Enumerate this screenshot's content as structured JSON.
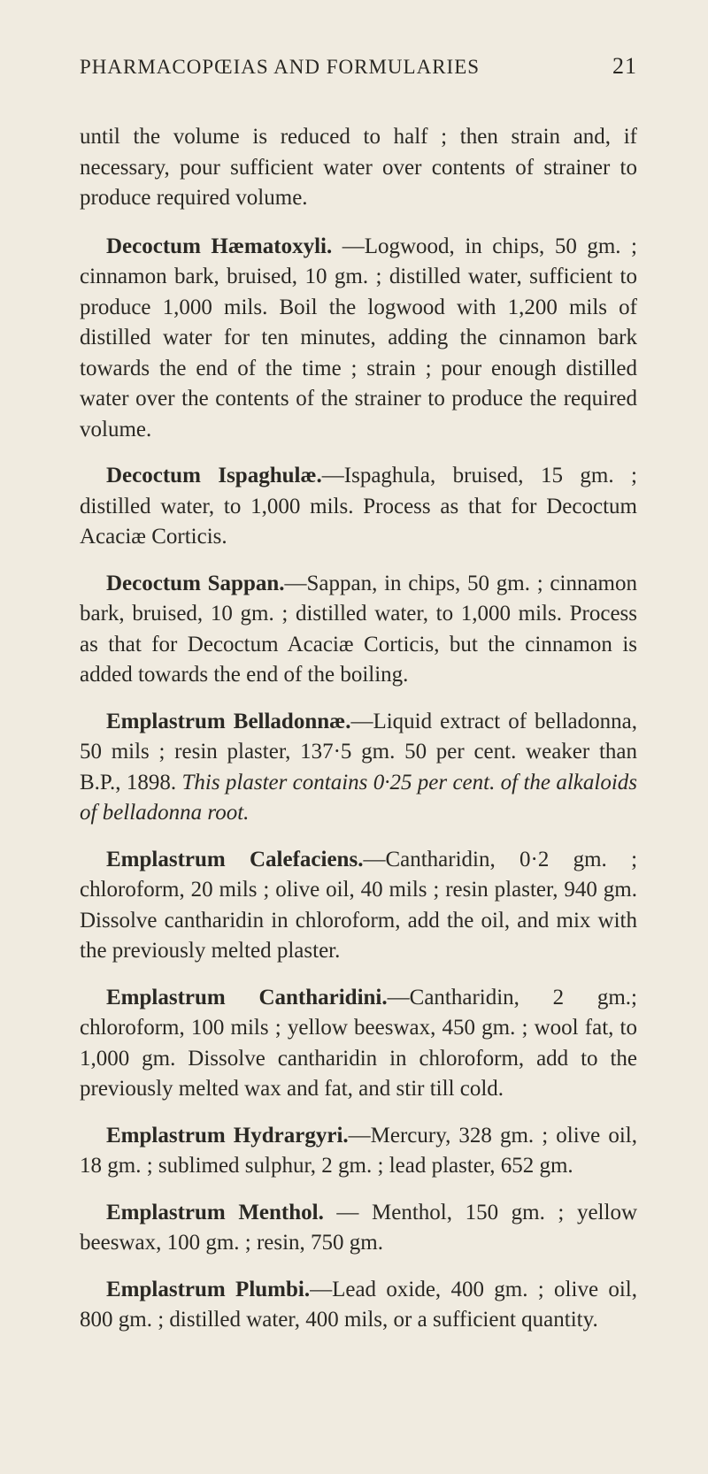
{
  "page": {
    "running_title": "PHARMACOPŒIAS AND FORMULARIES",
    "page_number": "21",
    "background_color": "#f0ebe0",
    "text_color": "#2a2823",
    "font_family": "Georgia, Times New Roman, serif",
    "body_fontsize": 25,
    "header_fontsize": 23,
    "line_height": 1.38
  },
  "intro": {
    "text": "until the volume is reduced to half ; then strain and, if necessary, pour sufficient water over contents of strainer to produce required volume."
  },
  "entries": [
    {
      "title": "Decoctum Hæmatoxyli.",
      "body": " —Logwood, in chips, 50 gm. ; cinnamon bark, bruised, 10 gm. ; distilled water, sufficient to produce 1,000 mils. Boil the logwood with 1,200 mils of distilled water for ten minutes, adding the cinnamon bark towards the end of the time ; strain ; pour enough distilled water over the contents of the strainer to produce the required volume."
    },
    {
      "title": "Decoctum Ispaghulæ.",
      "body": "—Ispaghula, bruised, 15 gm. ; distilled water, to 1,000 mils. Process as that for Decoctum Acaciæ Corticis."
    },
    {
      "title": "Decoctum Sappan.",
      "body": "—Sappan, in chips, 50 gm. ; cinnamon bark, bruised, 10 gm. ; distilled water, to 1,000 mils. Process as that for Decoctum Acaciæ Corticis, but the cinnamon is added towards the end of the boiling."
    },
    {
      "title": "Emplastrum Belladonnæ.",
      "body": "—Liquid extract of belladonna, 50 mils ; resin plaster, 137·5 gm. 50 per cent. weaker than B.P., 1898. ",
      "italic_tail": "This plaster contains 0·25 per cent. of the alkaloids of belladonna root."
    },
    {
      "title": "Emplastrum Calefaciens.",
      "body": "—Cantharidin, 0·2 gm. ; chloroform, 20 mils ; olive oil, 40 mils ; resin plaster, 940 gm. Dissolve cantharidin in chloroform, add the oil, and mix with the previously melted plaster."
    },
    {
      "title": "Emplastrum Cantharidini.",
      "body": "—Cantharidin, 2 gm.; chloroform, 100 mils ; yellow beeswax, 450 gm. ; wool fat, to 1,000 gm. Dissolve cantharidin in chloroform, add to the previously melted wax and fat, and stir till cold."
    },
    {
      "title": "Emplastrum Hydrargyri.",
      "body": "—Mercury, 328 gm. ; olive oil, 18 gm. ; sublimed sulphur, 2 gm. ; lead plaster, 652 gm."
    },
    {
      "title": "Emplastrum Menthol.",
      "body": " — Menthol, 150 gm. ; yellow beeswax, 100 gm. ; resin, 750 gm."
    },
    {
      "title": "Emplastrum Plumbi.",
      "body": "—Lead oxide, 400 gm. ; olive oil, 800 gm. ; distilled water, 400 mils, or a sufficient quantity."
    }
  ]
}
